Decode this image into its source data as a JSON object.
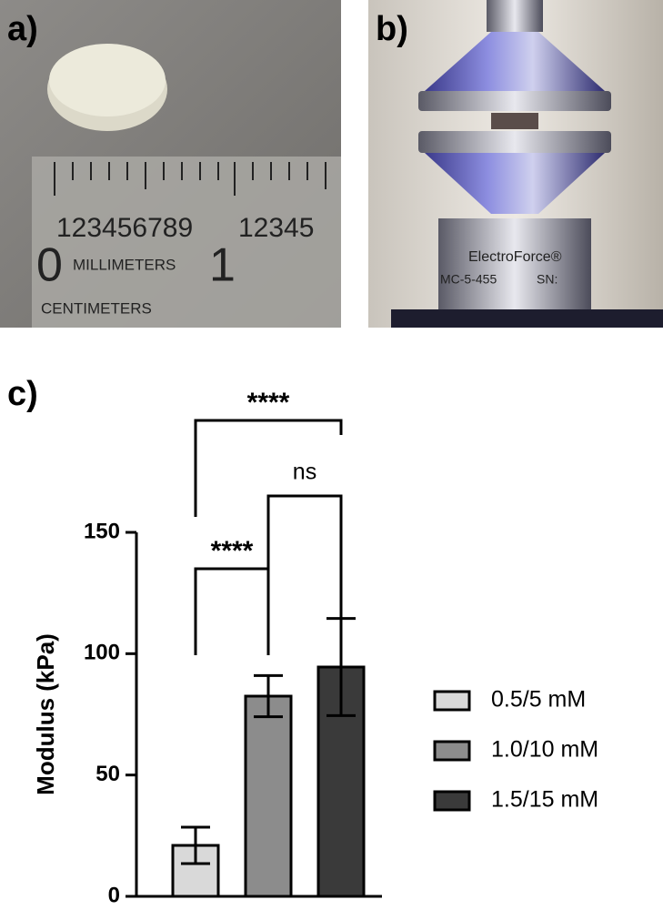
{
  "panels": {
    "a": "a)",
    "b": "b)",
    "c": "c)"
  },
  "photo_a": {
    "digits": "123456789",
    "digits2": "12345",
    "zero": "0",
    "one": "1",
    "mm": "MILLIMETERS",
    "cm": "CENTIMETERS"
  },
  "photo_b": {
    "brand": "ElectroForce®",
    "model": "MC-5-455",
    "sn": "SN:"
  },
  "chart_data": {
    "type": "bar",
    "ylabel": "Modulus (kPa)",
    "series": [
      {
        "name": "0.5/5 mM",
        "color": "#d9d9d9",
        "values": [
          21
        ],
        "errors": [
          7.5
        ]
      },
      {
        "name": "1.0/10 mM",
        "color": "#8c8c8c",
        "values": [
          82.5
        ],
        "errors": [
          8.5
        ]
      },
      {
        "name": "1.5/15 mM",
        "color": "#3a3a3a",
        "values": [
          94.5
        ],
        "errors": [
          20
        ]
      }
    ],
    "annotations": [
      "****",
      "ns",
      "****"
    ],
    "ylim": [
      0,
      150
    ],
    "yticks": [
      0,
      50,
      100,
      150
    ]
  }
}
